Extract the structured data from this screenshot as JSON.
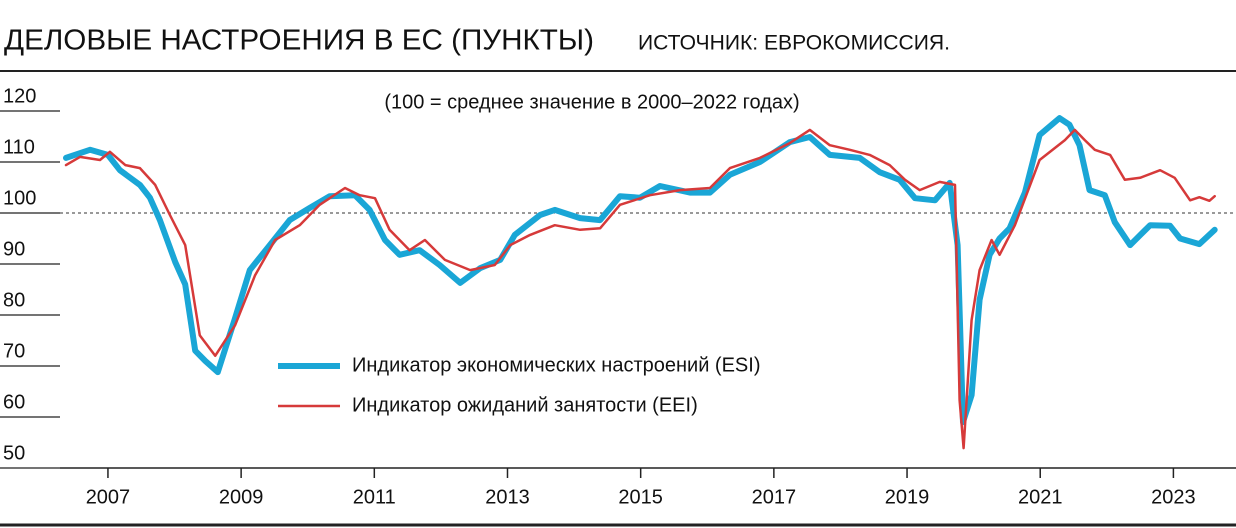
{
  "chart_data": {
    "type": "line",
    "title": "ДЕЛОВЫЕ НАСТРОЕНИЯ В ЕС (ПУНКТЫ)",
    "source": "ИСТОЧНИК: ЕВРОКОМИССИЯ.",
    "subtitle": "(100 = среднее значение в 2000–2022 годах)",
    "xlim": [
      2006.28,
      2023.94
    ],
    "xticks": [
      2007,
      2009,
      2011,
      2013,
      2015,
      2017,
      2019,
      2021,
      2023
    ],
    "ylim": [
      50,
      120
    ],
    "yticks": [
      50,
      60,
      70,
      80,
      90,
      100,
      110,
      120
    ],
    "reference_line": 100,
    "series": [
      {
        "name": "Индикатор экономических настроений (ESI)",
        "color": "#1aa6d6",
        "x": [
          2006.37,
          2006.73,
          2007,
          2007.18,
          2007.48,
          2007.63,
          2007.78,
          2008.01,
          2008.16,
          2008.31,
          2008.46,
          2008.65,
          2008.91,
          2009.13,
          2009.43,
          2009.73,
          2010.03,
          2010.33,
          2010.71,
          2010.93,
          2011.16,
          2011.38,
          2011.68,
          2011.98,
          2012.29,
          2012.59,
          2012.89,
          2013.11,
          2013.49,
          2013.71,
          2014.09,
          2014.39,
          2014.69,
          2014.99,
          2015.29,
          2015.74,
          2016.04,
          2016.34,
          2016.79,
          2017.24,
          2017.54,
          2017.84,
          2018.29,
          2018.59,
          2018.89,
          2019.12,
          2019.42,
          2019.64,
          2019.76,
          2019.84,
          2019.97,
          2020.09,
          2020.24,
          2020.39,
          2020.54,
          2020.77,
          2020.99,
          2021.29,
          2021.44,
          2021.59,
          2021.74,
          2021.97,
          2022.12,
          2022.35,
          2022.65,
          2022.95,
          2023.1,
          2023.39,
          2023.62
        ],
        "values": [
          110.8,
          112.4,
          111.4,
          108.4,
          105.5,
          103,
          98.6,
          90.4,
          86,
          73,
          71,
          68.8,
          79.4,
          88.8,
          93.7,
          98.6,
          101,
          103.3,
          103.5,
          100.6,
          94.7,
          91.8,
          92.7,
          89.8,
          86.3,
          89.2,
          90.8,
          95.7,
          99.6,
          100.6,
          99,
          98.6,
          103.3,
          103,
          105.3,
          104,
          104,
          107.5,
          110,
          113.9,
          114.9,
          111.4,
          110.8,
          108,
          106.5,
          102.9,
          102.5,
          105.9,
          93.7,
          59,
          64.3,
          83,
          91.8,
          95,
          97,
          104,
          115.3,
          118.6,
          117.3,
          113.3,
          104.5,
          103.5,
          98.2,
          93.7,
          97.6,
          97.5,
          95,
          93.9,
          96.7
        ]
      },
      {
        "name": "Индикатор ожиданий занятости (EEI)",
        "color": "#d63a3a",
        "x": [
          2006.37,
          2006.58,
          2006.88,
          2007.03,
          2007.26,
          2007.48,
          2007.71,
          2007.93,
          2008.16,
          2008.38,
          2008.61,
          2008.91,
          2009.21,
          2009.51,
          2009.88,
          2010.18,
          2010.56,
          2010.78,
          2011.01,
          2011.23,
          2011.53,
          2011.76,
          2012.06,
          2012.44,
          2012.81,
          2013.04,
          2013.34,
          2013.71,
          2014.09,
          2014.39,
          2014.69,
          2015.14,
          2015.59,
          2016.04,
          2016.34,
          2016.79,
          2017.24,
          2017.54,
          2017.84,
          2018.14,
          2018.44,
          2018.74,
          2018.97,
          2019.19,
          2019.49,
          2019.72,
          2019.79,
          2019.85,
          2019.97,
          2020.09,
          2020.27,
          2020.39,
          2020.62,
          2020.99,
          2021.37,
          2021.52,
          2021.67,
          2021.82,
          2022.05,
          2022.27,
          2022.5,
          2022.8,
          2023.02,
          2023.25,
          2023.39,
          2023.54,
          2023.62
        ],
        "values": [
          109.4,
          111,
          110.4,
          112,
          109.4,
          108.8,
          105.5,
          99.6,
          93.7,
          76,
          72,
          78,
          87.8,
          94.7,
          97.6,
          101.6,
          104.9,
          103.5,
          102.9,
          96.7,
          92.7,
          94.7,
          90.8,
          88.8,
          89.8,
          93.7,
          95.7,
          97.6,
          96.7,
          97,
          101.6,
          103.5,
          104.5,
          104.9,
          108.8,
          110.8,
          113.7,
          116.3,
          113.3,
          112.4,
          111.4,
          109.4,
          106.5,
          104.5,
          106.1,
          105.5,
          63.3,
          53.9,
          79,
          88.8,
          94.7,
          91.8,
          97.6,
          110.4,
          114.3,
          116.3,
          114.3,
          112.4,
          111.4,
          106.5,
          106.9,
          108.4,
          106.9,
          102.5,
          103.1,
          102.4,
          103.3
        ]
      }
    ]
  }
}
